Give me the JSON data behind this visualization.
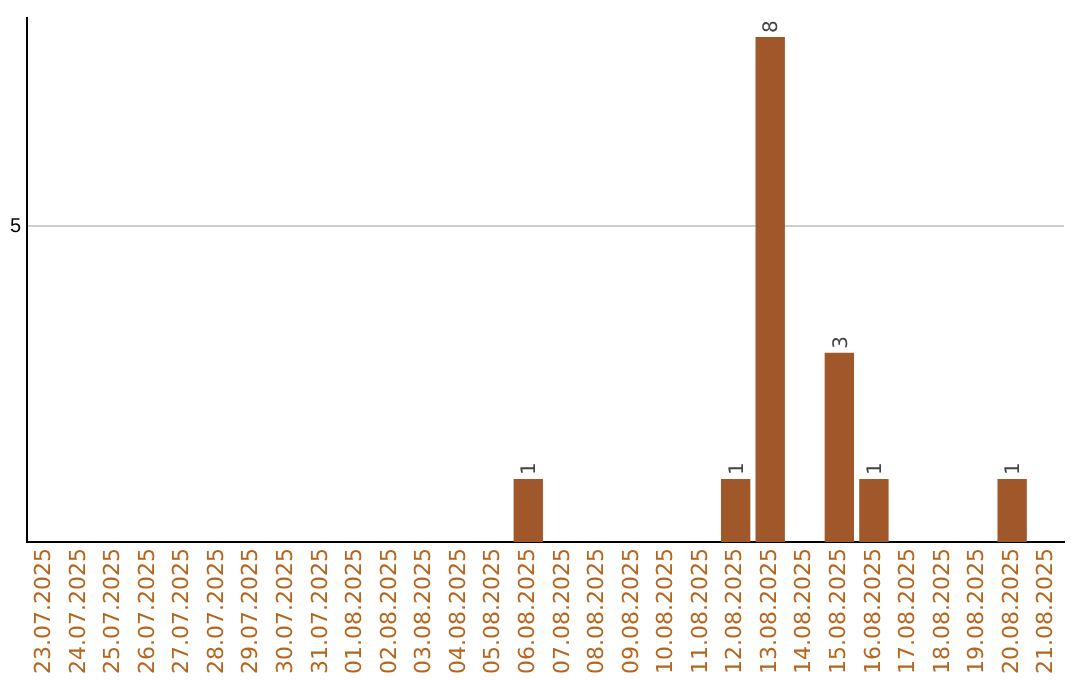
{
  "chart_data": {
    "type": "bar",
    "categories": [
      "23.07.2025",
      "24.07.2025",
      "25.07.2025",
      "26.07.2025",
      "27.07.2025",
      "28.07.2025",
      "29.07.2025",
      "30.07.2025",
      "31.07.2025",
      "01.08.2025",
      "02.08.2025",
      "03.08.2025",
      "04.08.2025",
      "05.08.2025",
      "06.08.2025",
      "07.08.2025",
      "08.08.2025",
      "09.08.2025",
      "10.08.2025",
      "11.08.2025",
      "12.08.2025",
      "13.08.2025",
      "14.08.2025",
      "15.08.2025",
      "16.08.2025",
      "17.08.2025",
      "18.08.2025",
      "19.08.2025",
      "20.08.2025",
      "21.08.2025"
    ],
    "values": [
      null,
      null,
      null,
      null,
      null,
      null,
      null,
      null,
      null,
      null,
      null,
      null,
      null,
      null,
      1,
      null,
      null,
      null,
      null,
      null,
      1,
      8,
      null,
      3,
      1,
      null,
      null,
      null,
      1,
      null
    ],
    "data_labels": true,
    "color": "#a0582a",
    "ylim": [
      0,
      8.3
    ],
    "yticks": [
      5
    ],
    "grid": "y",
    "legend": false
  }
}
